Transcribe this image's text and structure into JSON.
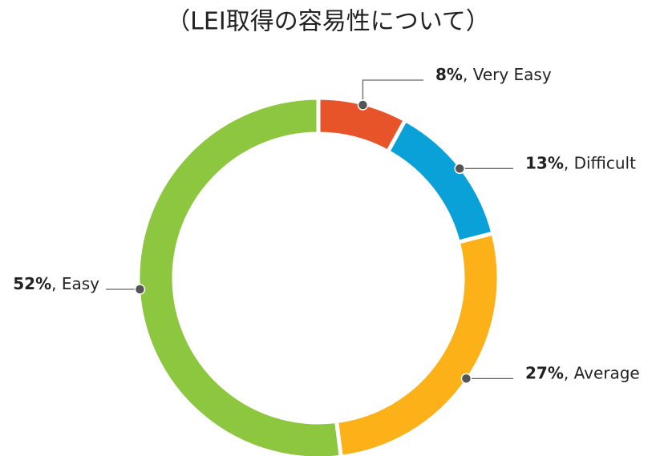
{
  "chart_data": {
    "type": "donut",
    "title": "（LEI取得の容易性について）",
    "categories": [
      "Very Easy",
      "Difficult",
      "Average",
      "Easy"
    ],
    "values": [
      8,
      13,
      27,
      52
    ],
    "value_labels": [
      "8%",
      "13%",
      "27%",
      "52%"
    ],
    "label_separator": ", ",
    "colors": [
      "#e8542a",
      "#0aa0d8",
      "#fbb117",
      "#8dc63f"
    ]
  }
}
